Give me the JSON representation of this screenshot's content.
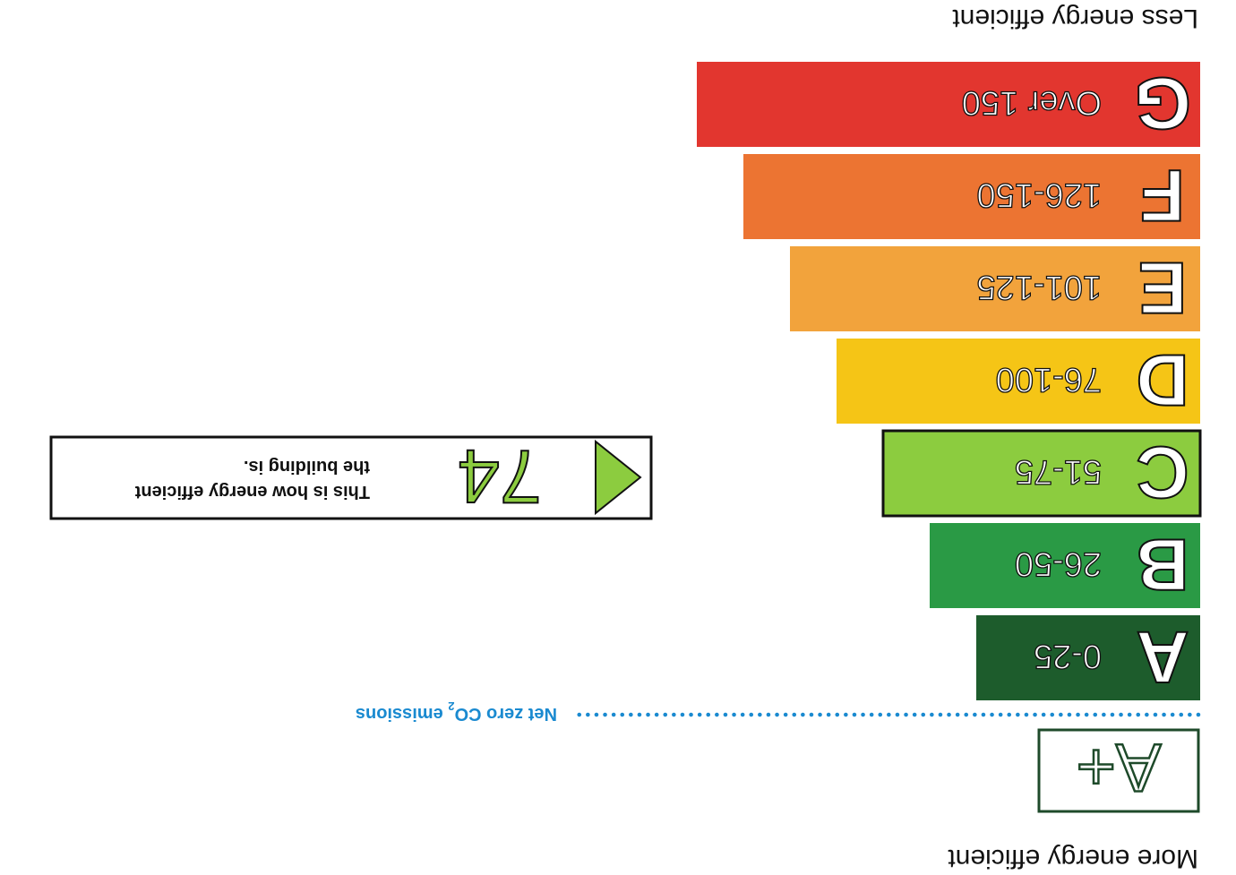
{
  "header": {
    "more_label": "More energy efficient",
    "less_label": "Less energy efficient"
  },
  "aplus": {
    "label": "A+"
  },
  "net_zero": {
    "label_pre": "Net zero CO",
    "label_sub": "2",
    "label_post": " emissions",
    "color": "#1a8ad0"
  },
  "chart_data": {
    "type": "bar",
    "categories": [
      "A",
      "B",
      "C",
      "D",
      "E",
      "F",
      "G"
    ],
    "ranges": [
      "0-25",
      "26-50",
      "51-75",
      "76-100",
      "101-125",
      "126-150",
      "Over 150"
    ],
    "colors": [
      "#1d5c2c",
      "#2a9a45",
      "#8ccc3f",
      "#f5c516",
      "#f2a33c",
      "#ec7432",
      "#e2362f"
    ],
    "highlighted": "C",
    "title": "",
    "xlabel": "",
    "ylabel": ""
  },
  "rating_box": {
    "value": "74",
    "text_line1": "This is how energy efficient",
    "text_line2": "the building is.",
    "arrow_color": "#8ccc3f"
  }
}
